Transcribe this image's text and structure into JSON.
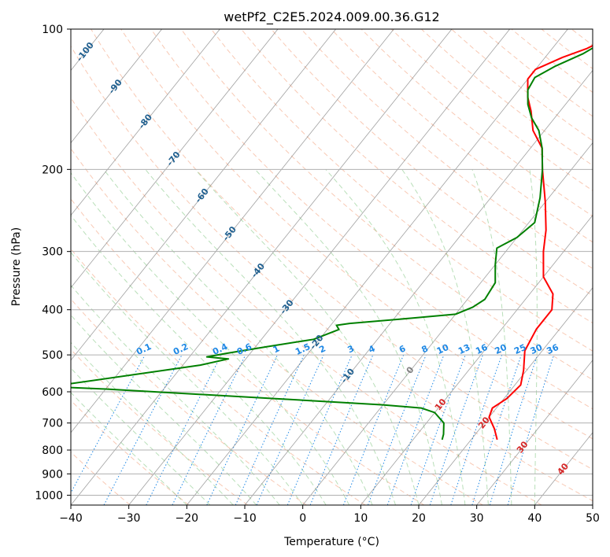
{
  "chart_data": {
    "type": "line",
    "diagram": "skew-T log-P",
    "title": "wetPf2_C2E5.2024.009.00.36.G12",
    "xlabel": "Temperature (°C)",
    "ylabel": "Pressure (hPa)",
    "xlim": [
      -40,
      50
    ],
    "ylim": [
      1050,
      100
    ],
    "x_ticks": [
      -40,
      -30,
      -20,
      -10,
      0,
      10,
      20,
      30,
      40,
      50
    ],
    "y_ticks": [
      100,
      200,
      300,
      400,
      500,
      600,
      700,
      800,
      900,
      1000
    ],
    "grid": true,
    "colors": {
      "temperature": "#ff0000",
      "dewpoint": "#008000",
      "isotherm": "#777777",
      "isotherm_label": "#1f5f8f",
      "mixing_ratio": "#1e88e5",
      "dry_adiabat": "#f4a582",
      "moist_adiabat": "#8bc98b",
      "hatched_label": "#d62728",
      "grid": "#b0b0b0"
    },
    "isotherm_labels": [
      "-100",
      "-90",
      "-80",
      "-70",
      "-60",
      "-50",
      "-40",
      "-30",
      "-20",
      "-10",
      "0",
      "10",
      "20",
      "30",
      "40"
    ],
    "mixing_ratio_labels": [
      "0.1",
      "0.2",
      "0.4",
      "0.6",
      "1",
      "1.5",
      "2",
      "3",
      "4",
      "6",
      "8",
      "10",
      "13",
      "16",
      "20",
      "25",
      "30",
      "36"
    ],
    "series": [
      {
        "name": "Temperature",
        "points": [
          [
            24.5,
            760
          ],
          [
            22.5,
            720
          ],
          [
            20,
            680
          ],
          [
            19.3,
            650
          ],
          [
            20.5,
            620
          ],
          [
            21,
            580
          ],
          [
            19.5,
            540
          ],
          [
            17,
            490
          ],
          [
            16,
            440
          ],
          [
            16,
            400
          ],
          [
            14,
            370
          ],
          [
            10,
            340
          ],
          [
            6.5,
            300
          ],
          [
            4,
            270
          ],
          [
            0,
            235
          ],
          [
            -5,
            200
          ],
          [
            -8,
            180
          ],
          [
            -12,
            165
          ],
          [
            -15,
            150
          ],
          [
            -17.5,
            140
          ],
          [
            -20,
            128
          ],
          [
            -20,
            122
          ],
          [
            -17,
            115
          ],
          [
            -14,
            110
          ],
          [
            -12,
            105
          ],
          [
            -10,
            100
          ]
        ]
      },
      {
        "name": "Dewpoint",
        "points": [
          [
            15,
            760
          ],
          [
            14.5,
            740
          ],
          [
            13,
            700
          ],
          [
            10,
            665
          ],
          [
            7,
            650
          ],
          [
            0,
            640
          ],
          [
            -20,
            620
          ],
          [
            -50,
            592
          ],
          [
            -60,
            585
          ],
          [
            -37,
            526
          ],
          [
            -33,
            510
          ],
          [
            -37,
            505
          ],
          [
            -34,
            496
          ],
          [
            -28,
            480
          ],
          [
            -21,
            463
          ],
          [
            -18,
            441
          ],
          [
            -19,
            432
          ],
          [
            -17,
            428
          ],
          [
            -7,
            417
          ],
          [
            0,
            409
          ],
          [
            2,
            395
          ],
          [
            3,
            380
          ],
          [
            2.5,
            350
          ],
          [
            0,
            320
          ],
          [
            -2,
            295
          ],
          [
            0,
            280
          ],
          [
            1,
            260
          ],
          [
            -1.5,
            230
          ],
          [
            -5,
            200
          ],
          [
            -8,
            180
          ],
          [
            -11,
            165
          ],
          [
            -14,
            155
          ],
          [
            -16.5,
            145
          ],
          [
            -18.5,
            135
          ],
          [
            -19,
            127
          ],
          [
            -17,
            120
          ],
          [
            -14,
            113
          ],
          [
            -11,
            103
          ],
          [
            -10,
            100
          ]
        ]
      }
    ]
  }
}
